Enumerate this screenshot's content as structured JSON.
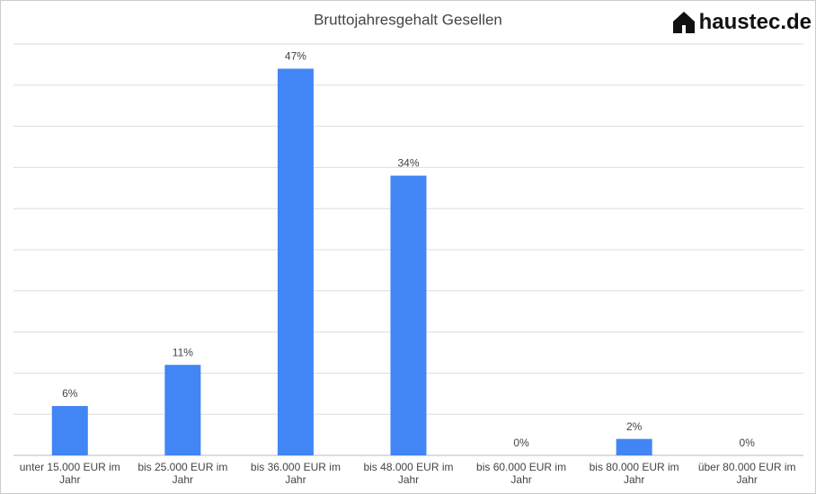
{
  "logo": "haustec.de",
  "chart_data": {
    "type": "bar",
    "title": "Bruttojahresgehalt Gesellen",
    "categories": [
      "unter 15.000 EUR im Jahr",
      "bis 25.000 EUR im Jahr",
      "bis 36.000 EUR im Jahr",
      "bis 48.000 EUR im Jahr",
      "bis 60.000 EUR im Jahr",
      "bis 80.000 EUR im Jahr",
      "über 80.000 EUR im Jahr"
    ],
    "values": [
      6,
      11,
      47,
      34,
      0,
      2,
      0
    ],
    "value_labels": [
      "6%",
      "11%",
      "47%",
      "34%",
      "0%",
      "2%",
      "0%"
    ],
    "color": "#4285f4",
    "ylim": [
      0,
      50
    ],
    "yticks": [
      0,
      5,
      10,
      15,
      20,
      25,
      30,
      35,
      40,
      45,
      50
    ],
    "grid": true
  }
}
